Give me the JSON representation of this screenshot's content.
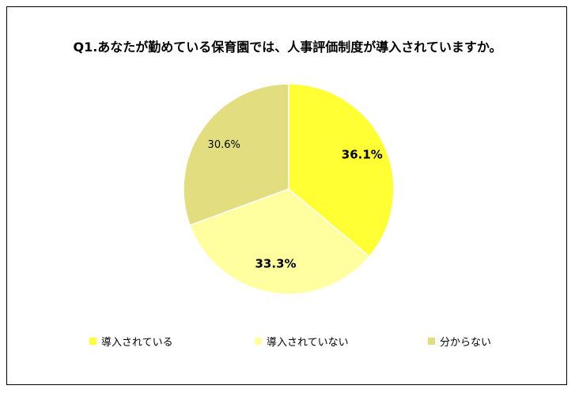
{
  "chart_data": {
    "type": "pie",
    "title": "Q1.あなたが勤めている保育園では、人事評価制度が導入されていますか。",
    "categories": [
      "導入されている",
      "導入されていない",
      "分からない"
    ],
    "values": [
      36.1,
      33.3,
      30.6
    ],
    "labels": [
      "36.1%",
      "33.3%",
      "30.6%"
    ],
    "colors": [
      "#ffff33",
      "#ffffa0",
      "#e2de80"
    ],
    "label_bold": [
      true,
      true,
      false
    ],
    "start": "12 o'clock",
    "direction": "clockwise",
    "legend_position": "bottom"
  }
}
